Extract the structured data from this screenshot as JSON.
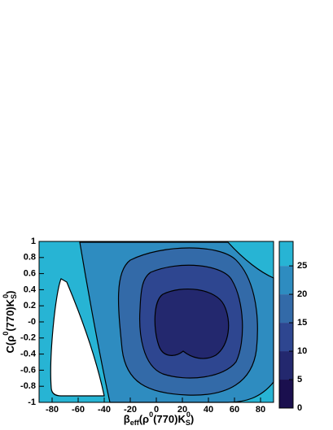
{
  "chart_data": {
    "type": "contour",
    "xlabel": [
      {
        "text": "β"
      },
      {
        "text": "eff",
        "script": "sub"
      },
      {
        "text": "(ρ"
      },
      {
        "text": "0",
        "script": "sup"
      },
      {
        "text": "(770)K"
      },
      {
        "text": "S",
        "script": "sub"
      },
      {
        "text": "0",
        "script": "sup"
      },
      {
        "text": ")"
      }
    ],
    "ylabel": [
      {
        "text": "C(ρ"
      },
      {
        "text": "0",
        "script": "sup"
      },
      {
        "text": "(770)K"
      },
      {
        "text": "S",
        "script": "sub"
      },
      {
        "text": "0",
        "script": "sup"
      },
      {
        "text": ")"
      }
    ],
    "xlim": [
      -90,
      90
    ],
    "xticks": [
      -80,
      -60,
      -40,
      -20,
      0,
      20,
      40,
      60,
      80
    ],
    "ylim": [
      -1,
      1
    ],
    "yticks": [
      -1,
      -0.8,
      -0.6,
      -0.4,
      -0.2,
      {
        "value": 0,
        "label": "-0"
      },
      0.2,
      0.4,
      0.6,
      0.8,
      1
    ],
    "zlim": [
      0,
      29.3
    ],
    "zticks": [
      0,
      5,
      10,
      15,
      20,
      25
    ],
    "levels": [
      0,
      5,
      10,
      15,
      20,
      25
    ],
    "level_colors": [
      "#1a0f4e",
      "#23286e",
      "#2e4690",
      "#336aa8",
      "#2e8cc0",
      "#27b4d4"
    ]
  }
}
